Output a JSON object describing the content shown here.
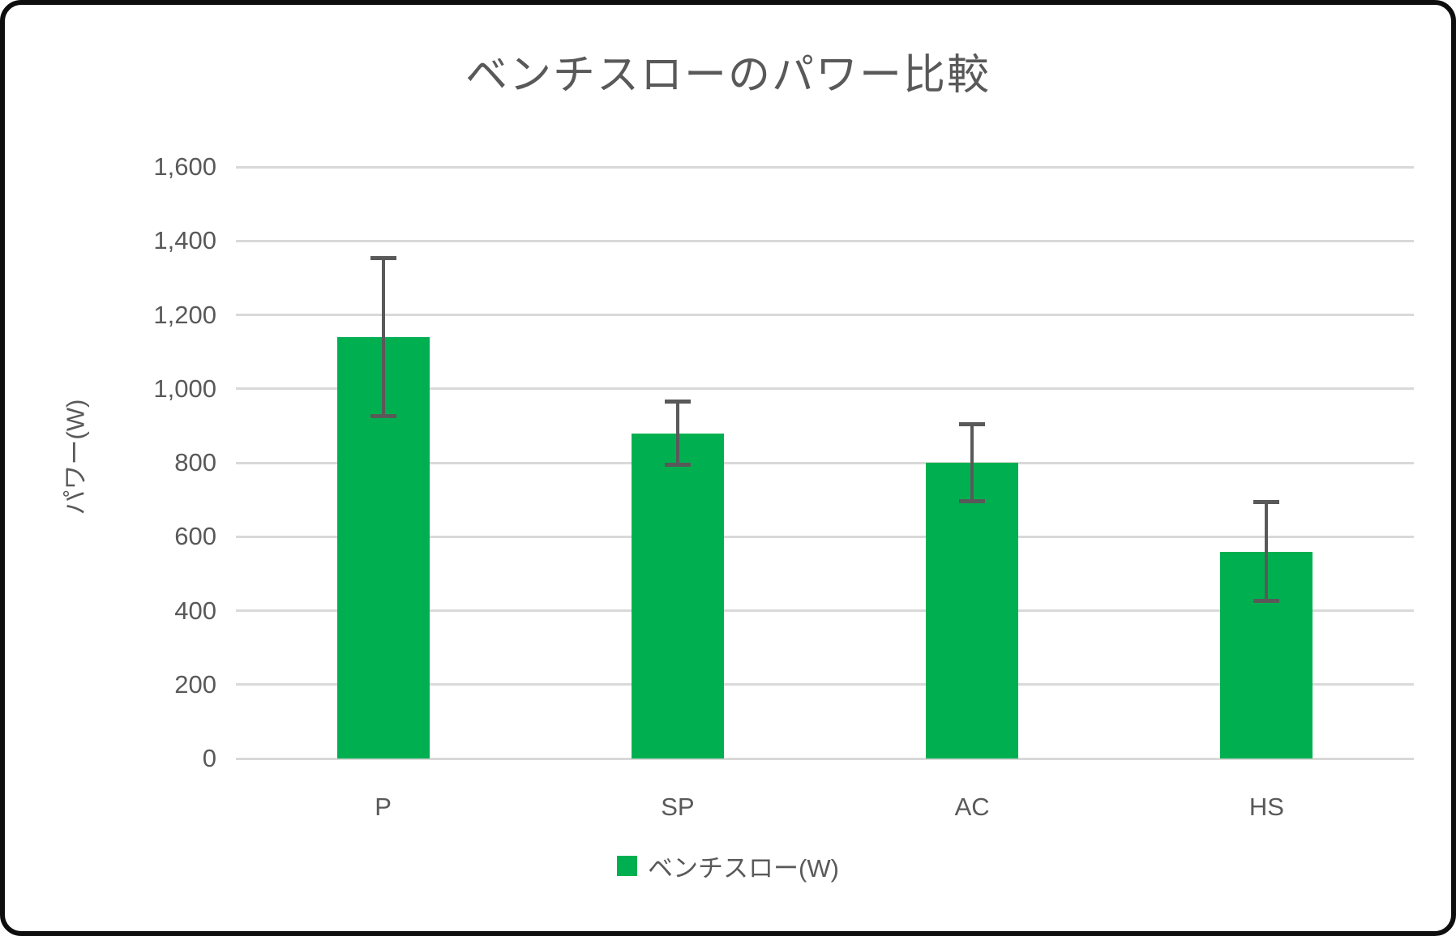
{
  "chart_data": {
    "type": "bar",
    "title": "ベンチスローのパワー比較",
    "xlabel": "",
    "ylabel": "パワー(W)",
    "categories": [
      "P",
      "SP",
      "AC",
      "HS"
    ],
    "series": [
      {
        "name": "ベンチスロー(W)",
        "values": [
          1140,
          880,
          800,
          560
        ],
        "error_plus": [
          220,
          90,
          110,
          140
        ],
        "error_minus": [
          220,
          90,
          110,
          140
        ],
        "color": "#00B050"
      }
    ],
    "ylim": [
      0,
      1600
    ],
    "ytick_interval": 200,
    "ytick_labels": [
      "0",
      "200",
      "400",
      "600",
      "800",
      "1,000",
      "1,200",
      "1,400",
      "1,600"
    ],
    "grid": true,
    "legend_position": "bottom",
    "colors": {
      "bar": "#00B050",
      "error_bar": "#595959",
      "gridline": "#D9D9D9",
      "text": "#595959",
      "frame_border": "#0E0E0E",
      "background": "#FFFFFF"
    }
  }
}
